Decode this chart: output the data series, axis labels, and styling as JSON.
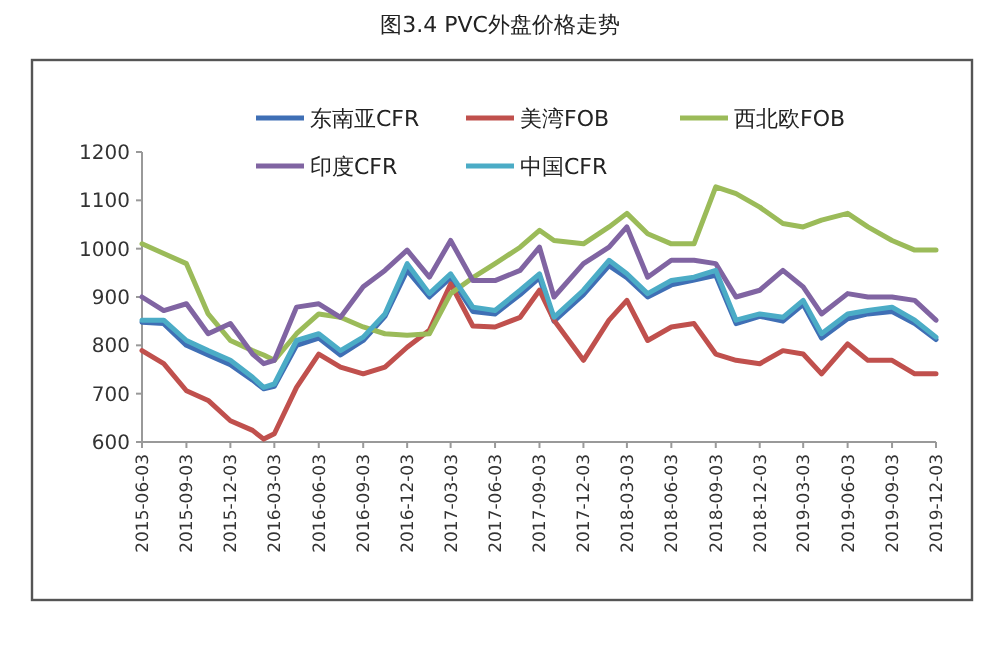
{
  "chart_data": {
    "type": "line",
    "title": "图3.4  PVC外盘价格走势",
    "x": [
      "2015-06-03",
      "2015-07-18",
      "2015-09-03",
      "2015-10-18",
      "2015-12-03",
      "2016-01-18",
      "2016-02-10",
      "2016-03-03",
      "2016-04-18",
      "2016-06-03",
      "2016-07-18",
      "2016-09-03",
      "2016-10-18",
      "2016-12-03",
      "2017-01-18",
      "2017-03-03",
      "2017-04-18",
      "2017-06-03",
      "2017-07-25",
      "2017-09-03",
      "2017-10-03",
      "2017-12-03",
      "2018-01-25",
      "2018-03-03",
      "2018-04-15",
      "2018-06-03",
      "2018-07-20",
      "2018-09-03",
      "2018-10-15",
      "2018-12-03",
      "2019-01-20",
      "2019-03-03",
      "2019-04-10",
      "2019-06-03",
      "2019-07-15",
      "2019-09-03",
      "2019-10-20",
      "2019-12-03"
    ],
    "series": [
      {
        "name": "东南亚CFR",
        "color": "#3f6fb5",
        "values": [
          848,
          845,
          800,
          780,
          760,
          728,
          710,
          715,
          800,
          815,
          780,
          810,
          860,
          955,
          900,
          940,
          870,
          865,
          905,
          940,
          850,
          905,
          965,
          940,
          900,
          925,
          935,
          945,
          845,
          860,
          850,
          885,
          815,
          855,
          865,
          870,
          845,
          812
        ]
      },
      {
        "name": "美湾FOB",
        "color": "#c0504d",
        "values": [
          789,
          762,
          706,
          686,
          644,
          624,
          606,
          617,
          713,
          782,
          755,
          741,
          755,
          796,
          831,
          927,
          840,
          838,
          858,
          914,
          852,
          769,
          852,
          893,
          810,
          838,
          845,
          782,
          769,
          762,
          789,
          782,
          741,
          803,
          769,
          769,
          741,
          741
        ]
      },
      {
        "name": "西北欧FOB",
        "color": "#9bbb59",
        "values": [
          1010,
          990,
          969,
          865,
          810,
          789,
          780,
          769,
          824,
          865,
          858,
          838,
          824,
          821,
          824,
          907,
          940,
          969,
          1003,
          1038,
          1017,
          1010,
          1045,
          1073,
          1031,
          1010,
          1010,
          1128,
          1114,
          1086,
          1052,
          1045,
          1059,
          1073,
          1045,
          1017,
          997,
          997
        ]
      },
      {
        "name": "印度CFR",
        "color": "#8064a2",
        "values": [
          900,
          872,
          886,
          824,
          845,
          782,
          762,
          769,
          879,
          886,
          858,
          921,
          955,
          997,
          941,
          1017,
          934,
          934,
          955,
          1003,
          900,
          969,
          1003,
          1045,
          941,
          976,
          976,
          969,
          900,
          914,
          955,
          921,
          865,
          907,
          900,
          900,
          893,
          852
        ]
      },
      {
        "name": "中国CFR",
        "color": "#4bacc6",
        "values": [
          852,
          852,
          810,
          789,
          769,
          734,
          713,
          720,
          810,
          824,
          789,
          817,
          865,
          969,
          907,
          948,
          879,
          872,
          914,
          948,
          858,
          914,
          976,
          948,
          907,
          934,
          941,
          955,
          852,
          865,
          858,
          893,
          824,
          865,
          872,
          879,
          852,
          817
        ]
      }
    ],
    "xlim": [
      "2015-06-03",
      "2019-12-03"
    ],
    "xticks": [
      "2015-06-03",
      "2015-09-03",
      "2015-12-03",
      "2016-03-03",
      "2016-06-03",
      "2016-09-03",
      "2016-12-03",
      "2017-03-03",
      "2017-06-03",
      "2017-09-03",
      "2017-12-03",
      "2018-03-03",
      "2018-06-03",
      "2018-09-03",
      "2018-12-03",
      "2019-03-03",
      "2019-06-03",
      "2019-09-03",
      "2019-12-03"
    ],
    "ylim": [
      600,
      1200
    ],
    "yticks": [
      600,
      700,
      800,
      900,
      1000,
      1100,
      1200
    ],
    "grid": false,
    "legend": "top",
    "marker": "none",
    "line_style": "solid"
  }
}
